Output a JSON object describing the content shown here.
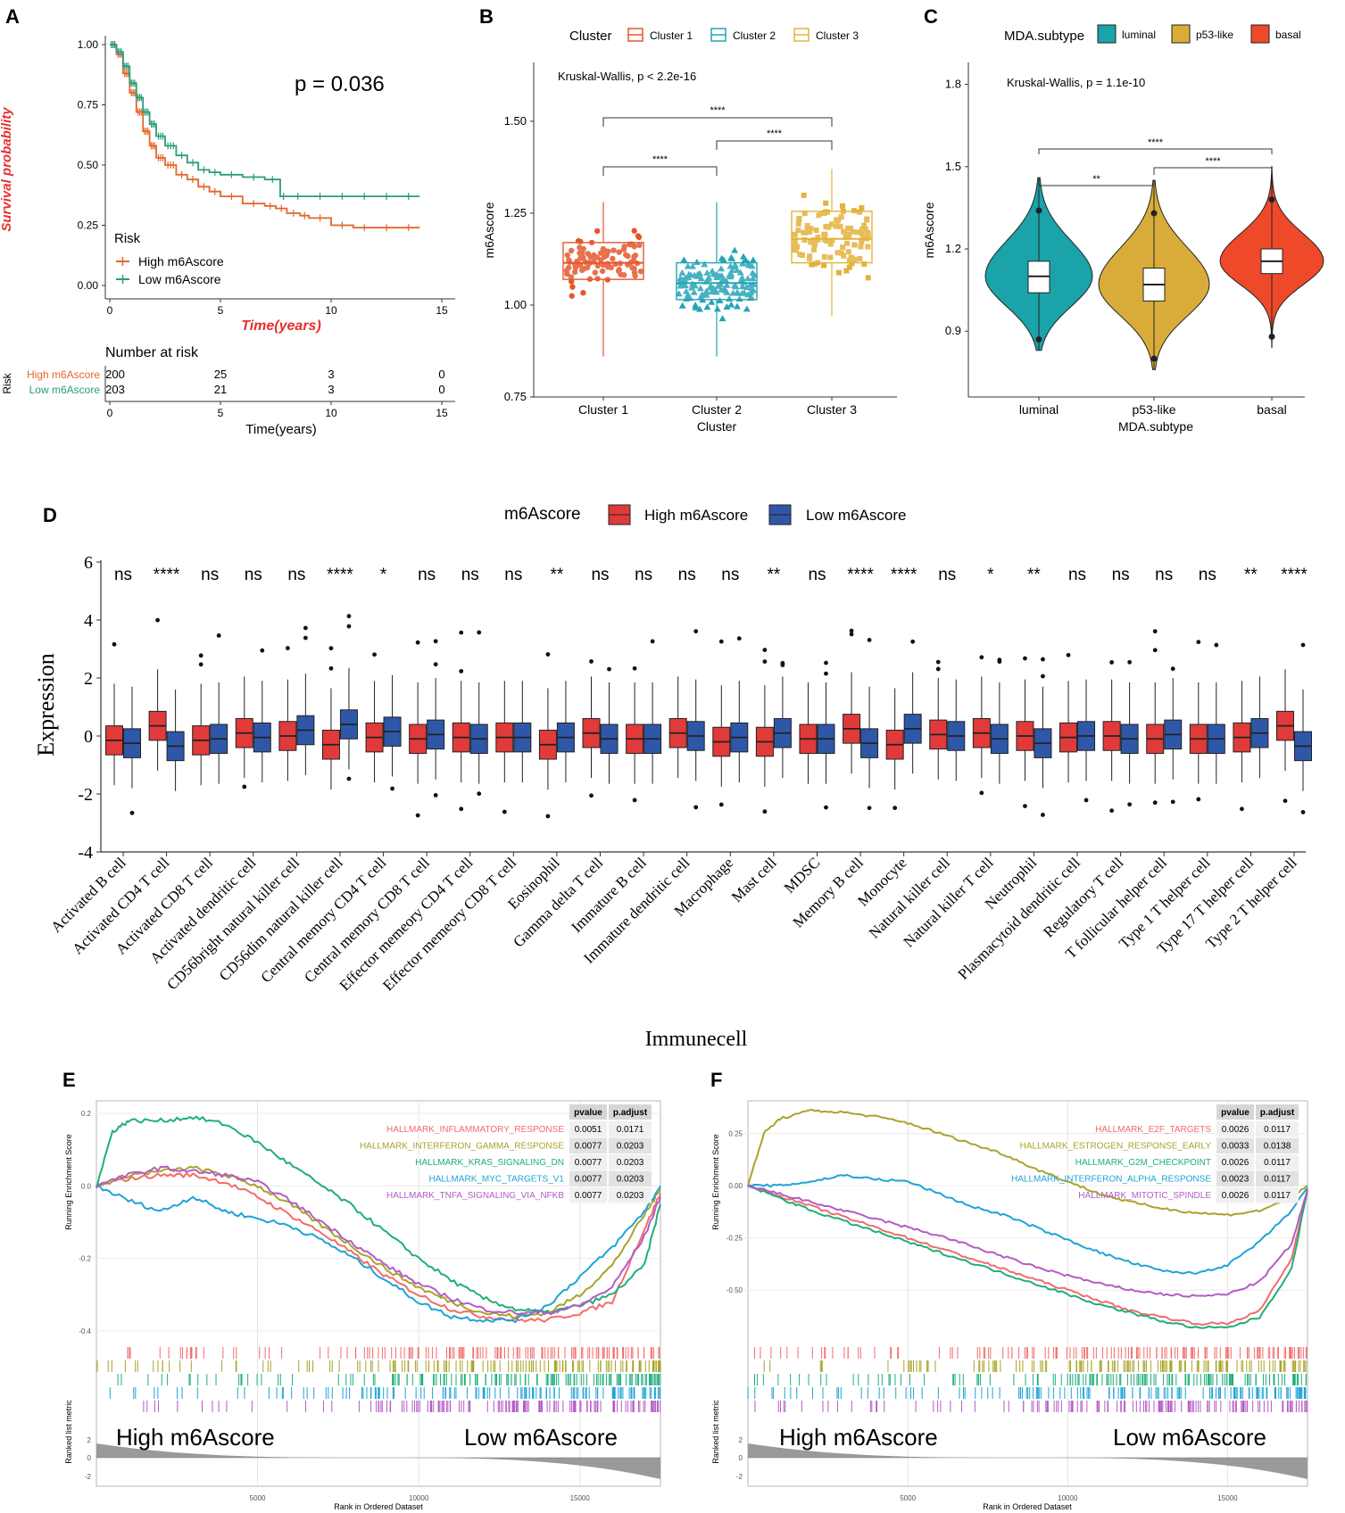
{
  "chart_data": [
    {
      "panel": "A",
      "type": "line",
      "subtype": "kaplan-meier",
      "title": "",
      "p_label": "p = 0.036",
      "xlabel": "Time(years)",
      "ylabel": "Survival probability",
      "xlim": [
        0,
        15
      ],
      "ylim": [
        0,
        1
      ],
      "x_ticks": [
        "0",
        "5",
        "10",
        "15"
      ],
      "y_ticks": [
        "0.00",
        "0.25",
        "0.50",
        "0.75",
        "1.00"
      ],
      "legend_title": "Risk",
      "series": [
        {
          "name": "High m6Ascore",
          "color": "#e4662b",
          "x": [
            0,
            0.3,
            0.6,
            0.9,
            1.2,
            1.5,
            1.8,
            2.1,
            2.5,
            3,
            3.5,
            4,
            4.5,
            5,
            6,
            7,
            7.5,
            8,
            8.6,
            9,
            10,
            11,
            12,
            13,
            14
          ],
          "y": [
            1,
            0.96,
            0.88,
            0.8,
            0.72,
            0.64,
            0.58,
            0.53,
            0.5,
            0.46,
            0.44,
            0.41,
            0.39,
            0.37,
            0.34,
            0.33,
            0.32,
            0.3,
            0.29,
            0.28,
            0.25,
            0.24,
            0.24,
            0.24,
            0.24
          ]
        },
        {
          "name": "Low m6Ascore",
          "color": "#2a9d78",
          "x": [
            0,
            0.3,
            0.6,
            0.9,
            1.2,
            1.5,
            1.8,
            2.1,
            2.5,
            3,
            3.5,
            4,
            4.5,
            5,
            6,
            7,
            7.7,
            8,
            9,
            10,
            11,
            12,
            13,
            14
          ],
          "y": [
            1,
            0.97,
            0.91,
            0.84,
            0.78,
            0.72,
            0.67,
            0.62,
            0.58,
            0.54,
            0.51,
            0.48,
            0.47,
            0.46,
            0.45,
            0.44,
            0.37,
            0.37,
            0.37,
            0.37,
            0.37,
            0.37,
            0.37,
            0.37
          ]
        }
      ],
      "risk_table": {
        "title": "Number at risk",
        "ylabel": "Risk",
        "xlabel": "Time(years)",
        "times": [
          "0",
          "5",
          "10",
          "15"
        ],
        "rows": [
          {
            "label": "High m6Ascore",
            "values": [
              "200",
              "25",
              "3",
              "0"
            ]
          },
          {
            "label": "Low m6Ascore",
            "values": [
              "203",
              "21",
              "3",
              "0"
            ]
          }
        ]
      }
    },
    {
      "panel": "B",
      "type": "box",
      "title": "Kruskal-Wallis, p < 2.2e-16",
      "legend_title": "Cluster",
      "xlabel": "Cluster",
      "ylabel": "m6Ascore",
      "ylim": [
        0.75,
        1.66
      ],
      "y_ticks": [
        "0.75",
        "1.00",
        "1.25",
        "1.50"
      ],
      "categories": [
        "Cluster 1",
        "Cluster 2",
        "Cluster 3"
      ],
      "colors": [
        "#e4572e",
        "#26a4b5",
        "#e3b23c"
      ],
      "boxes": [
        {
          "min": 0.86,
          "q1": 1.07,
          "median": 1.115,
          "q3": 1.17,
          "max": 1.28
        },
        {
          "min": 0.86,
          "q1": 1.015,
          "median": 1.06,
          "q3": 1.115,
          "max": 1.28
        },
        {
          "min": 0.97,
          "q1": 1.115,
          "median": 1.18,
          "q3": 1.255,
          "max": 1.37
        }
      ],
      "comparisons": [
        {
          "pair": [
            "Cluster 1",
            "Cluster 2"
          ],
          "label": "****"
        },
        {
          "pair": [
            "Cluster 2",
            "Cluster 3"
          ],
          "label": "****"
        },
        {
          "pair": [
            "Cluster 1",
            "Cluster 3"
          ],
          "label": "****"
        }
      ]
    },
    {
      "panel": "C",
      "type": "violin",
      "title": "Kruskal-Wallis, p = 1.1e-10",
      "legend_title": "MDA.subtype",
      "xlabel": "MDA.subtype",
      "ylabel": "m6Ascore",
      "ylim": [
        0.66,
        1.88
      ],
      "y_ticks": [
        "0.9",
        "1.2",
        "1.5",
        "1.8"
      ],
      "categories": [
        "luminal",
        "p53-like",
        "basal"
      ],
      "colors": [
        "#1aa3a9",
        "#d9ac3a",
        "#ee4a2a"
      ],
      "boxes": [
        {
          "min": 0.87,
          "q1": 1.04,
          "median": 1.1,
          "q3": 1.155,
          "max": 1.34
        },
        {
          "min": 0.8,
          "q1": 1.01,
          "median": 1.07,
          "q3": 1.13,
          "max": 1.33
        },
        {
          "min": 0.88,
          "q1": 1.11,
          "median": 1.155,
          "q3": 1.2,
          "max": 1.38
        }
      ],
      "comparisons": [
        {
          "pair": [
            "luminal",
            "p53-like"
          ],
          "label": "**"
        },
        {
          "pair": [
            "p53-like",
            "basal"
          ],
          "label": "****"
        },
        {
          "pair": [
            "luminal",
            "basal"
          ],
          "label": "****"
        }
      ]
    },
    {
      "panel": "D",
      "type": "box",
      "legend_title": "m6Ascore",
      "xlabel": "Immunecell",
      "ylabel": "Expression",
      "ylim": [
        -4,
        6
      ],
      "y_ticks": [
        "-4",
        "-2",
        "0",
        "2",
        "4",
        "6"
      ],
      "series": [
        {
          "name": "High m6Ascore",
          "color": "#e03a3a"
        },
        {
          "name": "Low m6Ascore",
          "color": "#2f57a8"
        }
      ],
      "categories": [
        "Activated B cell",
        "Activated CD4 T cell",
        "Activated CD8 T cell",
        "Activated dendritic cell",
        "CD56bright natural killer cell",
        "CD56dim natural killer cell",
        "Central memory CD4 T cell",
        "Central memory CD8 T cell",
        "Effector memeory CD4 T cell",
        "Effector memeory CD8 T cell",
        "Eosinophil",
        "Gamma delta T cell",
        "Immature  B cell",
        "Immature dendritic cell",
        "Macrophage",
        "Mast cell",
        "MDSC",
        "Memory B cell",
        "Monocyte",
        "Natural killer cell",
        "Natural killer T cell",
        "Neutrophil",
        "Plasmacytoid dendritic cell",
        "Regulatory T cell",
        "T follicular helper cell",
        "Type 1 T helper cell",
        "Type 17 T helper cell",
        "Type 2 T helper cell"
      ],
      "significance": [
        "ns",
        "****",
        "ns",
        "ns",
        "ns",
        "****",
        "*",
        "ns",
        "ns",
        "ns",
        "**",
        "ns",
        "ns",
        "ns",
        "ns",
        "**",
        "ns",
        "****",
        "****",
        "ns",
        "*",
        "**",
        "ns",
        "ns",
        "ns",
        "ns",
        "**",
        "****"
      ],
      "medians_high": [
        -0.15,
        0.35,
        -0.15,
        0.1,
        0.0,
        -0.3,
        -0.05,
        -0.1,
        -0.05,
        -0.05,
        -0.3,
        0.1,
        -0.1,
        0.1,
        -0.2,
        -0.2,
        -0.1,
        0.25,
        -0.3,
        0.05,
        0.1,
        0.0,
        -0.05,
        0.0,
        -0.1,
        -0.1,
        -0.05,
        0.35
      ],
      "medians_low": [
        -0.25,
        -0.35,
        -0.1,
        -0.05,
        0.2,
        0.4,
        0.15,
        0.05,
        -0.1,
        -0.05,
        -0.05,
        -0.1,
        -0.1,
        0.0,
        -0.05,
        0.1,
        -0.1,
        -0.25,
        0.25,
        0.0,
        -0.1,
        -0.25,
        0.0,
        -0.1,
        0.05,
        -0.1,
        0.1,
        -0.35
      ],
      "iqr_half": 0.5,
      "whisker": 1.35
    },
    {
      "panel": "E",
      "type": "line",
      "subtype": "gsea",
      "xlabel": "Rank in Ordered Dataset",
      "ylabel": "Running Enrichment Score",
      "ylabel_bottom": "Ranked list metric",
      "xlim": [
        0,
        17500
      ],
      "ylim": [
        -0.42,
        0.22
      ],
      "x_ticks": [
        "5000",
        "10000",
        "15000"
      ],
      "y_ticks": [
        "-0.4",
        "-0.2",
        "0.0",
        "0.2"
      ],
      "metric_ticks": [
        "2",
        "0",
        "-2"
      ],
      "left_label": "High m6Ascore",
      "right_label": "Low m6Ascore",
      "table_headers": [
        "pvalue",
        "p.adjust"
      ],
      "series": [
        {
          "name": "HALLMARK_INFLAMMATORY_RESPONSE",
          "color": "#f36b6b",
          "pvalue": "0.0051",
          "p_adjust": "0.0171",
          "x": [
            0,
            1000,
            2000,
            3000,
            4000,
            5000,
            6000,
            7000,
            8000,
            9000,
            10000,
            11000,
            12000,
            13000,
            14000,
            15000,
            16000,
            17000,
            17500
          ],
          "y": [
            0,
            0.02,
            0.03,
            0.03,
            0.01,
            -0.03,
            -0.08,
            -0.13,
            -0.19,
            -0.25,
            -0.3,
            -0.34,
            -0.36,
            -0.37,
            -0.37,
            -0.35,
            -0.32,
            -0.12,
            -0.02
          ]
        },
        {
          "name": "HALLMARK_INTERFERON_GAMMA_RESPONSE",
          "color": "#a9a32a",
          "pvalue": "0.0077",
          "p_adjust": "0.0203",
          "x": [
            0,
            1000,
            2000,
            3000,
            4000,
            5000,
            6000,
            7000,
            8000,
            9000,
            10000,
            11000,
            12000,
            13000,
            14000,
            15000,
            16000,
            17000,
            17500
          ],
          "y": [
            0,
            0.03,
            0.04,
            0.05,
            0.03,
            0.0,
            -0.05,
            -0.11,
            -0.17,
            -0.23,
            -0.28,
            -0.32,
            -0.35,
            -0.36,
            -0.35,
            -0.3,
            -0.22,
            -0.08,
            -0.01
          ]
        },
        {
          "name": "HALLMARK_KRAS_SIGNALING_DN",
          "color": "#1fae7a",
          "pvalue": "0.0077",
          "p_adjust": "0.0203",
          "x": [
            0,
            500,
            1000,
            2000,
            3000,
            4000,
            5000,
            6000,
            7000,
            8000,
            9000,
            10000,
            11000,
            12000,
            13000,
            14000,
            15000,
            16000,
            17000,
            17500
          ],
          "y": [
            0,
            0.15,
            0.18,
            0.18,
            0.19,
            0.17,
            0.12,
            0.06,
            0.0,
            -0.06,
            -0.13,
            -0.2,
            -0.26,
            -0.31,
            -0.34,
            -0.35,
            -0.33,
            -0.3,
            -0.22,
            -0.05
          ]
        },
        {
          "name": "HALLMARK_MYC_TARGETS_V1",
          "color": "#1ea3d6",
          "pvalue": "0.0077",
          "p_adjust": "0.0203",
          "x": [
            0,
            1000,
            2000,
            3000,
            4000,
            5000,
            6000,
            7000,
            8000,
            9000,
            10000,
            11000,
            12000,
            13000,
            14000,
            15000,
            16000,
            17000,
            17500
          ],
          "y": [
            0,
            -0.04,
            -0.07,
            -0.03,
            -0.07,
            -0.09,
            -0.11,
            -0.15,
            -0.2,
            -0.26,
            -0.32,
            -0.36,
            -0.37,
            -0.37,
            -0.33,
            -0.25,
            -0.17,
            -0.07,
            0.0
          ]
        },
        {
          "name": "HALLMARK_TNFA_SIGNALING_VIA_NFKB",
          "color": "#b45cc6",
          "pvalue": "0.0077",
          "p_adjust": "0.0203",
          "x": [
            0,
            1000,
            2000,
            3000,
            4000,
            5000,
            6000,
            7000,
            8000,
            9000,
            10000,
            11000,
            12000,
            13000,
            14000,
            15000,
            16000,
            17000,
            17500
          ],
          "y": [
            0,
            0.03,
            0.05,
            0.04,
            0.03,
            0.01,
            -0.04,
            -0.1,
            -0.16,
            -0.22,
            -0.27,
            -0.31,
            -0.34,
            -0.35,
            -0.35,
            -0.33,
            -0.28,
            -0.14,
            -0.03
          ]
        }
      ]
    },
    {
      "panel": "F",
      "type": "line",
      "subtype": "gsea",
      "xlabel": "Rank in Ordered Dataset",
      "ylabel": "Running Enrichment Score",
      "ylabel_bottom": "Ranked list metric",
      "xlim": [
        0,
        17500
      ],
      "ylim": [
        -0.73,
        0.38
      ],
      "x_ticks": [
        "5000",
        "10000",
        "15000"
      ],
      "y_ticks": [
        "-0.50",
        "-0.25",
        "0.00",
        "0.25"
      ],
      "metric_ticks": [
        "2",
        "0",
        "-2"
      ],
      "left_label": "High m6Ascore",
      "right_label": "Low m6Ascore",
      "table_headers": [
        "pvalue",
        "p.adjust"
      ],
      "series": [
        {
          "name": "HALLMARK_E2F_TARGETS",
          "color": "#f36b6b",
          "pvalue": "0.0026",
          "p_adjust": "0.0117",
          "x": [
            0,
            1000,
            2000,
            3000,
            4000,
            5000,
            6000,
            7000,
            8000,
            9000,
            10000,
            11000,
            12000,
            13000,
            14000,
            15000,
            16000,
            17000,
            17500
          ],
          "y": [
            0,
            -0.05,
            -0.1,
            -0.15,
            -0.2,
            -0.25,
            -0.3,
            -0.35,
            -0.4,
            -0.45,
            -0.5,
            -0.55,
            -0.6,
            -0.63,
            -0.66,
            -0.66,
            -0.6,
            -0.35,
            -0.02
          ]
        },
        {
          "name": "HALLMARK_ESTROGEN_RESPONSE_EARLY",
          "color": "#a9a32a",
          "pvalue": "0.0033",
          "p_adjust": "0.0138",
          "x": [
            0,
            500,
            1000,
            2000,
            3000,
            4000,
            5000,
            6000,
            7000,
            8000,
            9000,
            10000,
            11000,
            12000,
            13000,
            14000,
            15000,
            16000,
            17000,
            17500
          ],
          "y": [
            0,
            0.25,
            0.32,
            0.36,
            0.35,
            0.33,
            0.3,
            0.25,
            0.2,
            0.15,
            0.08,
            0.02,
            -0.04,
            -0.08,
            -0.11,
            -0.13,
            -0.14,
            -0.12,
            -0.06,
            0.0
          ]
        },
        {
          "name": "HALLMARK_G2M_CHECKPOINT",
          "color": "#1fae7a",
          "pvalue": "0.0026",
          "p_adjust": "0.0117",
          "x": [
            0,
            1000,
            2000,
            3000,
            4000,
            5000,
            6000,
            7000,
            8000,
            9000,
            10000,
            11000,
            12000,
            13000,
            14000,
            15000,
            16000,
            17000,
            17500
          ],
          "y": [
            0,
            -0.06,
            -0.12,
            -0.17,
            -0.22,
            -0.27,
            -0.32,
            -0.37,
            -0.42,
            -0.47,
            -0.52,
            -0.57,
            -0.61,
            -0.65,
            -0.68,
            -0.68,
            -0.63,
            -0.4,
            -0.02
          ]
        },
        {
          "name": "HALLMARK_INTERFERON_ALPHA_RESPONSE",
          "color": "#1ea3d6",
          "pvalue": "0.0023",
          "p_adjust": "0.0117",
          "x": [
            0,
            1000,
            2000,
            3000,
            4000,
            5000,
            6000,
            7000,
            8000,
            9000,
            10000,
            11000,
            12000,
            13000,
            14000,
            15000,
            16000,
            17000,
            17500
          ],
          "y": [
            0,
            0.0,
            0.02,
            0.05,
            0.03,
            0.02,
            -0.04,
            -0.1,
            -0.14,
            -0.2,
            -0.26,
            -0.32,
            -0.37,
            -0.41,
            -0.42,
            -0.38,
            -0.27,
            -0.12,
            -0.01
          ]
        },
        {
          "name": "HALLMARK_MITOTIC_SPINDLE",
          "color": "#b45cc6",
          "pvalue": "0.0026",
          "p_adjust": "0.0117",
          "x": [
            0,
            1000,
            2000,
            3000,
            4000,
            5000,
            6000,
            7000,
            8000,
            9000,
            10000,
            11000,
            12000,
            13000,
            14000,
            15000,
            16000,
            17000,
            17500
          ],
          "y": [
            0,
            -0.04,
            -0.08,
            -0.12,
            -0.16,
            -0.2,
            -0.24,
            -0.29,
            -0.34,
            -0.39,
            -0.43,
            -0.47,
            -0.5,
            -0.52,
            -0.53,
            -0.52,
            -0.46,
            -0.28,
            -0.02
          ]
        }
      ]
    }
  ],
  "panel_letters": [
    "A",
    "B",
    "C",
    "D",
    "E",
    "F"
  ]
}
